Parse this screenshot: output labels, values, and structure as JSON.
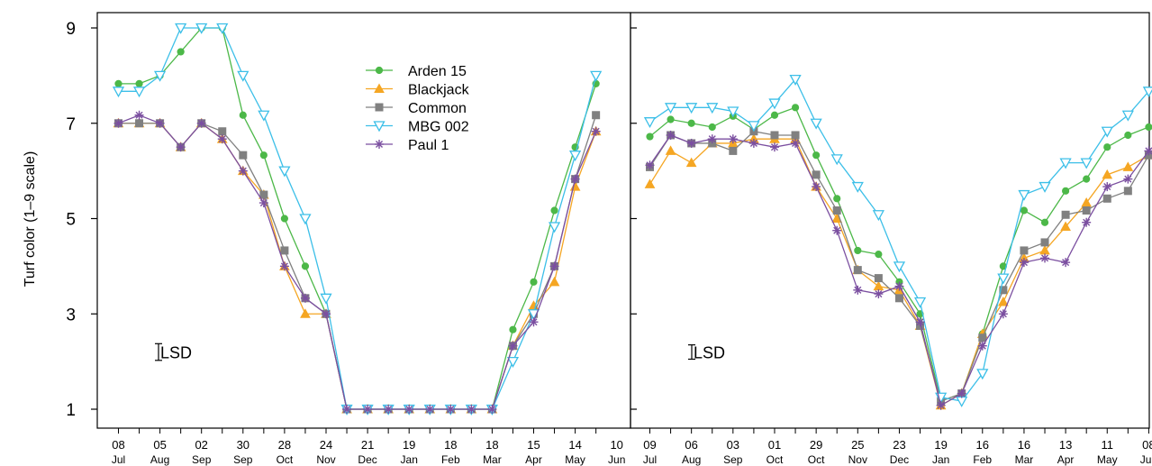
{
  "chart_data": {
    "type": "line",
    "ylabel": "Turf color (1–9 scale)",
    "ylim": [
      1,
      9
    ],
    "yticks": [
      "1",
      "3",
      "5",
      "7",
      "9"
    ],
    "legend_position": "top-center of left panel",
    "colors": {
      "Arden 15": "#4cb848",
      "Blackjack": "#f5a623",
      "Common": "#808080",
      "MBG 002": "#3cbfe8",
      "Paul 1": "#7b4fa0"
    },
    "markers": {
      "Arden 15": "circle",
      "Blackjack": "triangle-up",
      "Common": "square",
      "MBG 002": "triangle-down-open",
      "Paul 1": "asterisk"
    },
    "lsd_label": "LSD",
    "panels": [
      {
        "lsd": 0.35,
        "x_labels": [
          {
            "day": "08",
            "month": "Jul"
          },
          {
            "day": "05",
            "month": "Aug"
          },
          {
            "day": "02",
            "month": "Sep"
          },
          {
            "day": "30",
            "month": "Sep"
          },
          {
            "day": "28",
            "month": "Oct"
          },
          {
            "day": "24",
            "month": "Nov"
          },
          {
            "day": "21",
            "month": "Dec"
          },
          {
            "day": "19",
            "month": "Jan"
          },
          {
            "day": "18",
            "month": "Feb"
          },
          {
            "day": "18",
            "month": "Mar"
          },
          {
            "day": "15",
            "month": "Apr"
          },
          {
            "day": "14",
            "month": "May"
          },
          {
            "day": "10",
            "month": "Jun"
          }
        ],
        "series": [
          {
            "name": "Arden 15",
            "values": [
              7.83,
              7.83,
              8.0,
              8.5,
              9.0,
              9.0,
              7.17,
              6.33,
              5.0,
              4.0,
              3.0,
              1,
              1,
              1,
              1,
              1,
              1,
              1,
              1,
              2.67,
              3.67,
              5.17,
              6.5,
              7.83
            ]
          },
          {
            "name": "Blackjack",
            "values": [
              7.0,
              7.0,
              7.0,
              6.5,
              7.0,
              6.67,
              6.0,
              5.5,
              4.0,
              3.0,
              3.0,
              1,
              1,
              1,
              1,
              1,
              1,
              1,
              1,
              2.33,
              3.17,
              3.67,
              5.67,
              6.83
            ]
          },
          {
            "name": "Common",
            "values": [
              7.0,
              7.0,
              7.0,
              6.5,
              7.0,
              6.83,
              6.33,
              5.5,
              4.33,
              3.33,
              3.0,
              1,
              1,
              1,
              1,
              1,
              1,
              1,
              1,
              2.33,
              3.0,
              4.0,
              5.83,
              7.17
            ]
          },
          {
            "name": "MBG 002",
            "values": [
              7.67,
              7.67,
              8.0,
              9.0,
              9.0,
              9.0,
              8.0,
              7.17,
              6.0,
              5.0,
              3.33,
              1,
              1,
              1,
              1,
              1,
              1,
              1,
              1,
              2.0,
              3.0,
              4.83,
              6.33,
              8.0
            ]
          },
          {
            "name": "Paul 1",
            "values": [
              7.0,
              7.17,
              7.0,
              6.5,
              7.0,
              6.67,
              6.0,
              5.33,
              4.0,
              3.33,
              3.0,
              1,
              1,
              1,
              1,
              1,
              1,
              1,
              1,
              2.33,
              2.83,
              4.0,
              5.83,
              6.83
            ]
          }
        ]
      },
      {
        "lsd": 0.3,
        "x_labels": [
          {
            "day": "09",
            "month": "Jul"
          },
          {
            "day": "06",
            "month": "Aug"
          },
          {
            "day": "03",
            "month": "Sep"
          },
          {
            "day": "01",
            "month": "Oct"
          },
          {
            "day": "29",
            "month": "Oct"
          },
          {
            "day": "25",
            "month": "Nov"
          },
          {
            "day": "23",
            "month": "Dec"
          },
          {
            "day": "19",
            "month": "Jan"
          },
          {
            "day": "16",
            "month": "Feb"
          },
          {
            "day": "16",
            "month": "Mar"
          },
          {
            "day": "13",
            "month": "Apr"
          },
          {
            "day": "11",
            "month": "May"
          },
          {
            "day": "08",
            "month": "Jun"
          }
        ],
        "series": [
          {
            "name": "Arden 15",
            "values": [
              6.72,
              7.08,
              7.0,
              6.92,
              7.15,
              6.87,
              7.17,
              7.33,
              6.33,
              5.42,
              4.33,
              4.25,
              3.67,
              3.0,
              1.17,
              1.33,
              2.58,
              4.0,
              5.17,
              4.92,
              5.58,
              5.83,
              6.5,
              6.75,
              6.92
            ]
          },
          {
            "name": "Blackjack",
            "values": [
              5.72,
              6.42,
              6.17,
              6.58,
              6.58,
              6.67,
              6.67,
              6.67,
              5.67,
              5.0,
              3.92,
              3.58,
              3.5,
              2.75,
              1.08,
              1.33,
              2.58,
              3.25,
              4.17,
              4.33,
              4.83,
              5.33,
              5.92,
              6.08,
              6.33
            ]
          },
          {
            "name": "Common",
            "values": [
              6.08,
              6.75,
              6.58,
              6.58,
              6.42,
              6.83,
              6.75,
              6.75,
              5.92,
              5.17,
              3.92,
              3.75,
              3.33,
              2.75,
              1.17,
              1.33,
              2.5,
              3.5,
              4.33,
              4.5,
              5.08,
              5.17,
              5.42,
              5.58,
              6.33
            ]
          },
          {
            "name": "MBG 002",
            "values": [
              7.03,
              7.33,
              7.33,
              7.33,
              7.25,
              6.95,
              7.42,
              7.92,
              7.0,
              6.25,
              5.67,
              5.08,
              4.0,
              3.25,
              1.25,
              1.17,
              1.75,
              3.75,
              5.5,
              5.67,
              6.17,
              6.17,
              6.83,
              7.17,
              7.67
            ]
          },
          {
            "name": "Paul 1",
            "values": [
              6.12,
              6.75,
              6.58,
              6.67,
              6.67,
              6.58,
              6.5,
              6.58,
              5.67,
              4.75,
              3.5,
              3.42,
              3.58,
              2.83,
              1.08,
              1.33,
              2.33,
              3.0,
              4.08,
              4.17,
              4.08,
              4.92,
              5.67,
              5.83,
              6.42
            ]
          }
        ]
      }
    ]
  }
}
